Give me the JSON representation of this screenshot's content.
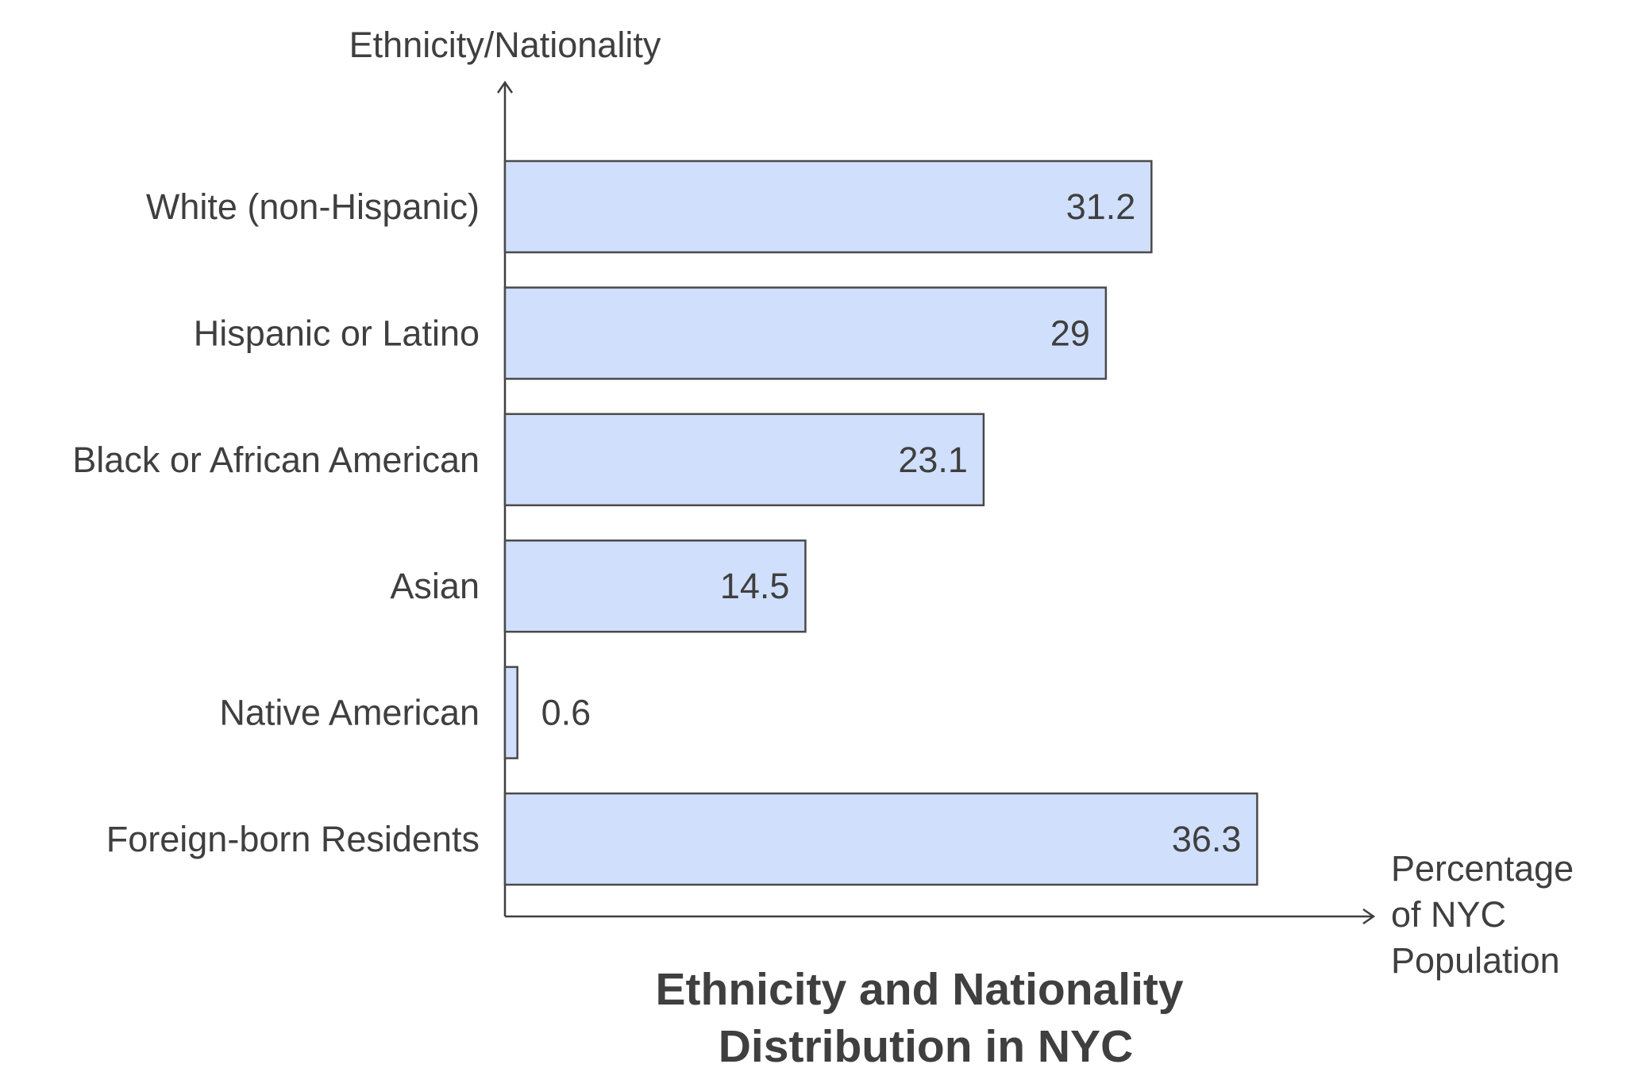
{
  "chart_data": {
    "type": "bar",
    "orientation": "horizontal",
    "title": [
      "Ethnicity and Nationality",
      "Distribution in NYC"
    ],
    "ylabel": "Ethnicity/Nationality",
    "xlabel": [
      "Percentage",
      "of NYC",
      "Population"
    ],
    "categories": [
      "White (non-Hispanic)",
      "Hispanic or Latino",
      "Black or African American",
      "Asian",
      "Native American",
      "Foreign-born Residents"
    ],
    "values": [
      31.2,
      29,
      23.1,
      14.5,
      0.6,
      36.3
    ],
    "value_labels": [
      "31.2",
      "29",
      "23.1",
      "14.5",
      "0.6",
      "36.3"
    ],
    "xlim": [
      0,
      42
    ],
    "grid": false,
    "legend": "none",
    "colors": {
      "bar_fill": "#d0dffc",
      "bar_stroke": "#4a4a4a",
      "text": "#3f3f3f",
      "axis": "#3f3f3f"
    }
  }
}
